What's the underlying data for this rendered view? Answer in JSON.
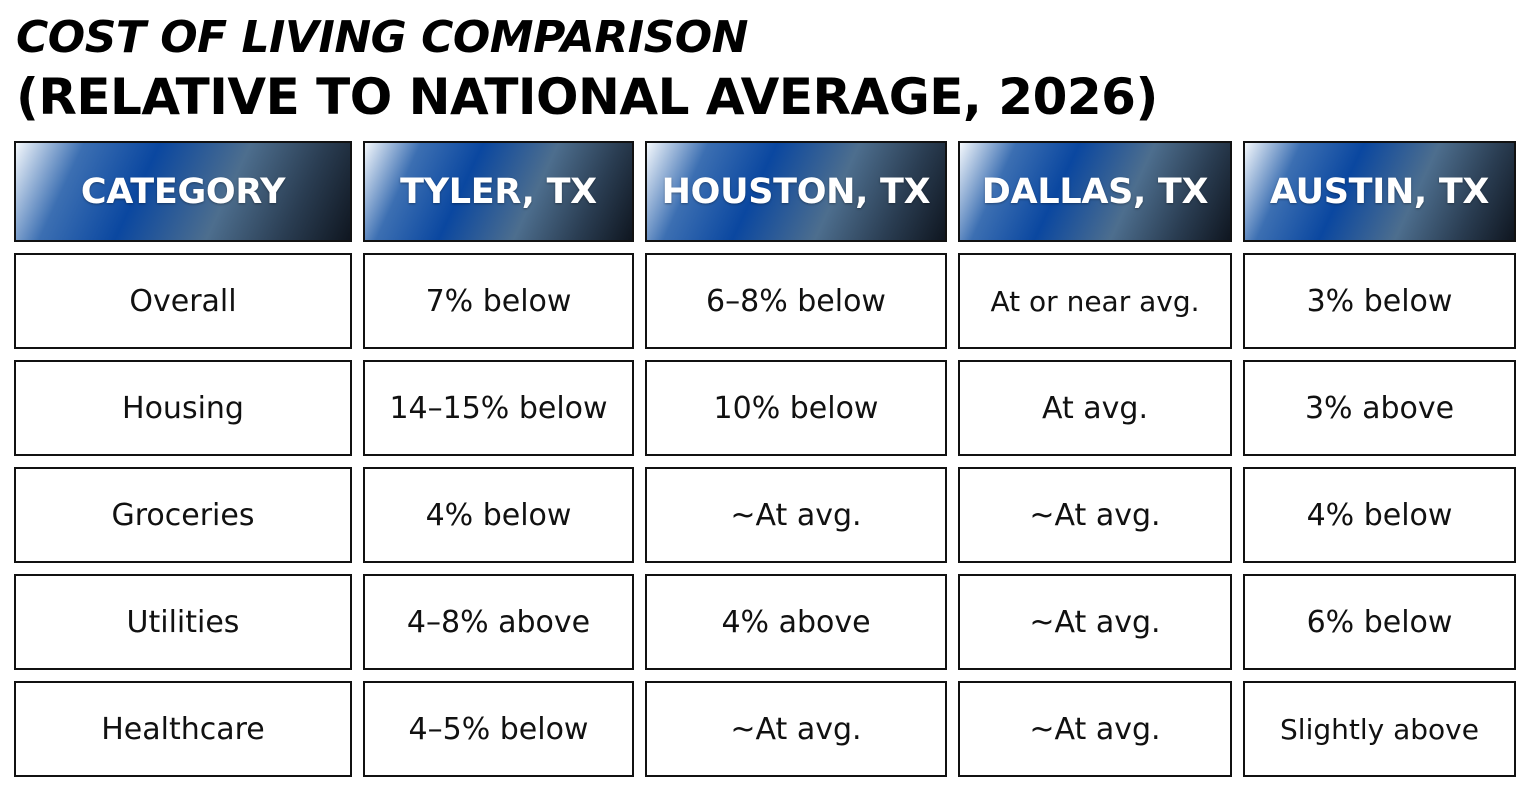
{
  "chart_data": {
    "type": "table",
    "title": "COST OF LIVING COMPARISON",
    "subtitle": "(RELATIVE TO NATIONAL AVERAGE, 2026)",
    "columns": [
      "CATEGORY",
      "TYLER, TX",
      "HOUSTON, TX",
      "DALLAS, TX",
      "AUSTIN, TX"
    ],
    "rows": [
      [
        "Overall",
        "7% below",
        "6–8% below",
        "At or near avg.",
        "3% below"
      ],
      [
        "Housing",
        "14–15% below",
        "10% below",
        "At avg.",
        "3% above"
      ],
      [
        "Groceries",
        "4% below",
        "~At avg.",
        "~At avg.",
        "4% below"
      ],
      [
        "Utilities",
        "4–8% above",
        "4% above",
        "~At avg.",
        "6% below"
      ],
      [
        "Healthcare",
        "4–5% below",
        "~At avg.",
        "~At avg.",
        "Slightly above"
      ]
    ]
  },
  "colors": {
    "header_dark": "#0a47a0",
    "header_light": "#f4f8fc",
    "header_end": "#0f1620",
    "border": "#111111"
  }
}
